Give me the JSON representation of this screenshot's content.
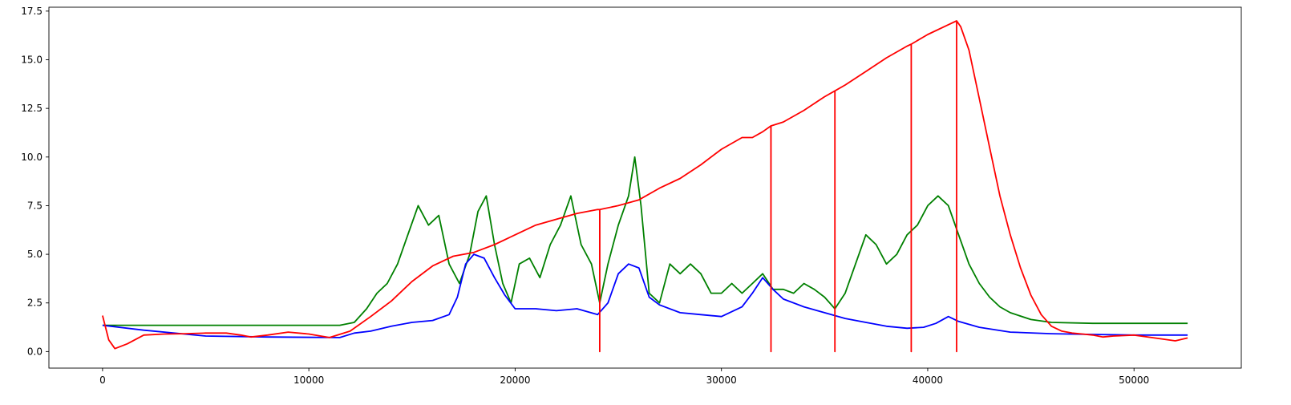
{
  "chart_data": {
    "type": "line",
    "title": "",
    "xlabel": "",
    "ylabel": "",
    "xlim": [
      -2600,
      55200
    ],
    "ylim": [
      -0.85,
      17.7
    ],
    "grid": false,
    "legend": "none",
    "x_ticks": [
      0,
      10000,
      20000,
      30000,
      40000,
      50000
    ],
    "x_tick_labels": [
      "0",
      "10000",
      "20000",
      "30000",
      "40000",
      "50000"
    ],
    "y_ticks": [
      0,
      2.5,
      5,
      7.5,
      10,
      12.5,
      15,
      17.5
    ],
    "y_tick_labels": [
      "0.0",
      "2.5",
      "5.0",
      "7.5",
      "10.0",
      "12.5",
      "15.0",
      "17.5"
    ],
    "series": [
      {
        "color": "#008000",
        "x": [
          0,
          5000,
          11500,
          12200,
          12800,
          13300,
          13800,
          14300,
          14800,
          15300,
          15800,
          16300,
          16800,
          17300,
          17800,
          18200,
          18600,
          19000,
          19400,
          19800,
          20200,
          20700,
          21200,
          21700,
          22200,
          22700,
          23200,
          23700,
          24100,
          24500,
          25000,
          25500,
          25800,
          26100,
          26500,
          27000,
          27500,
          28000,
          28500,
          29000,
          29500,
          30000,
          30500,
          31000,
          31500,
          32000,
          32500,
          33000,
          33500,
          34000,
          34500,
          35000,
          35500,
          36000,
          36500,
          37000,
          37500,
          38000,
          38500,
          39000,
          39500,
          40000,
          40500,
          41000,
          41500,
          42000,
          42500,
          43000,
          43500,
          44000,
          45000,
          46000,
          48000,
          50000,
          52600
        ],
        "y": [
          1.35,
          1.35,
          1.35,
          1.5,
          2.2,
          3.0,
          3.5,
          4.5,
          6.0,
          7.5,
          6.5,
          7.0,
          4.5,
          3.5,
          5.0,
          7.2,
          8.0,
          5.5,
          3.5,
          2.5,
          4.5,
          4.8,
          3.8,
          5.5,
          6.5,
          8.0,
          5.5,
          4.5,
          2.5,
          4.5,
          6.5,
          8.0,
          10.0,
          7.5,
          3.0,
          2.5,
          4.5,
          4.0,
          4.5,
          4.0,
          3.0,
          3.0,
          3.5,
          3.0,
          3.5,
          4.0,
          3.2,
          3.2,
          3.0,
          3.5,
          3.2,
          2.8,
          2.2,
          3.0,
          4.5,
          6.0,
          5.5,
          4.5,
          5.0,
          6.0,
          6.5,
          7.5,
          8.0,
          7.5,
          6.0,
          4.5,
          3.5,
          2.8,
          2.3,
          2.0,
          1.65,
          1.5,
          1.45,
          1.45,
          1.45
        ]
      },
      {
        "color": "#0000ff",
        "x": [
          0,
          2000,
          5000,
          8000,
          11500,
          12200,
          13000,
          14000,
          15000,
          16000,
          16800,
          17200,
          17600,
          18000,
          18500,
          19000,
          19500,
          20000,
          21000,
          22000,
          23000,
          24000,
          24500,
          25000,
          25500,
          26000,
          26500,
          27000,
          28000,
          29000,
          30000,
          31000,
          31500,
          32000,
          32500,
          33000,
          34000,
          35000,
          36000,
          37000,
          38000,
          39000,
          39800,
          40400,
          41000,
          41500,
          42500,
          44000,
          46000,
          48000,
          50000,
          52600
        ],
        "y": [
          1.35,
          1.1,
          0.8,
          0.75,
          0.72,
          0.95,
          1.05,
          1.3,
          1.5,
          1.6,
          1.9,
          2.8,
          4.5,
          5.0,
          4.8,
          3.8,
          2.9,
          2.2,
          2.2,
          2.1,
          2.2,
          1.9,
          2.5,
          4.0,
          4.5,
          4.3,
          2.8,
          2.4,
          2.0,
          1.9,
          1.8,
          2.3,
          3.0,
          3.8,
          3.2,
          2.7,
          2.3,
          2.0,
          1.7,
          1.5,
          1.3,
          1.2,
          1.25,
          1.45,
          1.8,
          1.55,
          1.25,
          1.0,
          0.92,
          0.88,
          0.85,
          0.85
        ]
      },
      {
        "color": "#ff0000",
        "x": [
          0,
          300,
          600,
          1200,
          2000,
          3000,
          4000,
          5000,
          6000,
          6700,
          7200,
          8000,
          9000,
          10000,
          11000,
          12000,
          13000,
          14000,
          15000,
          16000,
          17000,
          18000,
          19000,
          20000,
          21000,
          22000,
          23000,
          24000,
          24100,
          24101,
          24102,
          25000,
          26000,
          27000,
          28000,
          29000,
          30000,
          31000,
          31500,
          32000,
          32400,
          32401,
          32402,
          33000,
          34000,
          35000,
          35500,
          35501,
          35502,
          36000,
          37000,
          38000,
          39000,
          39200,
          39201,
          39202,
          40000,
          41000,
          41400,
          41401,
          41402,
          41600,
          42000,
          42500,
          43000,
          43500,
          44000,
          44500,
          45000,
          45500,
          46000,
          46500,
          47000,
          47500,
          48000,
          48500,
          49000,
          50000,
          51000,
          52000,
          52600
        ],
        "y": [
          1.85,
          0.6,
          0.15,
          0.4,
          0.85,
          0.9,
          0.92,
          0.95,
          0.95,
          0.85,
          0.75,
          0.85,
          1.0,
          0.9,
          0.72,
          1.05,
          1.8,
          2.6,
          3.6,
          4.4,
          4.9,
          5.1,
          5.5,
          6.0,
          6.5,
          6.8,
          7.1,
          7.3,
          7.3,
          0,
          7.3,
          7.5,
          7.8,
          8.4,
          8.9,
          9.6,
          10.4,
          11.0,
          11.0,
          11.3,
          11.6,
          0,
          11.6,
          11.8,
          12.4,
          13.1,
          13.4,
          0,
          13.4,
          13.7,
          14.4,
          15.1,
          15.7,
          15.8,
          0,
          15.8,
          16.3,
          16.8,
          17.0,
          0,
          17.0,
          16.7,
          15.5,
          13.0,
          10.5,
          8.0,
          6.0,
          4.3,
          2.9,
          1.9,
          1.3,
          1.05,
          0.95,
          0.9,
          0.85,
          0.75,
          0.8,
          0.85,
          0.7,
          0.55,
          0.7
        ]
      }
    ]
  }
}
